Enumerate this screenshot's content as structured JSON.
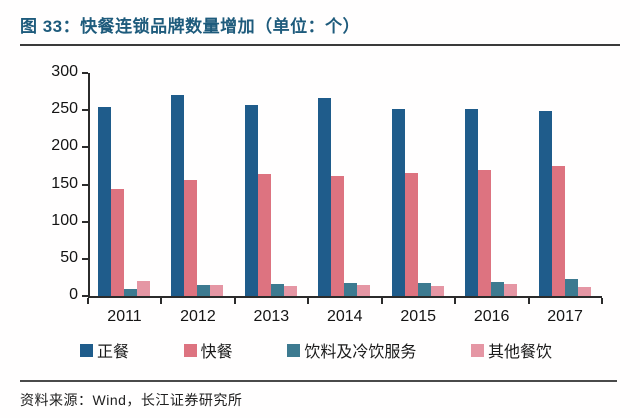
{
  "header": {
    "title": "图 33：快餐连锁品牌数量增加（单位：个）"
  },
  "footer": {
    "source": "资料来源：Wind，长江证券研究所"
  },
  "colors": {
    "title_text": "#1e5b7c",
    "axis": "#2b2b2b",
    "series_zhengcan": "#1f5c8b",
    "series_kuaican": "#dd7380",
    "series_yinliao": "#3d7a90",
    "series_qita": "#e596a4"
  },
  "chart_data": {
    "type": "bar",
    "title": "快餐连锁品牌数量增加（单位：个）",
    "categories": [
      "2011",
      "2012",
      "2013",
      "2014",
      "2015",
      "2016",
      "2017"
    ],
    "series": [
      {
        "name": "正餐",
        "color": "#1f5c8b",
        "values": [
          254,
          270,
          257,
          267,
          252,
          251,
          249
        ]
      },
      {
        "name": "快餐",
        "color": "#dd7380",
        "values": [
          144,
          156,
          164,
          161,
          166,
          169,
          175
        ]
      },
      {
        "name": "饮料及冷饮服务",
        "color": "#3d7a90",
        "values": [
          10,
          15,
          16,
          18,
          17,
          19,
          23
        ]
      },
      {
        "name": "其他餐饮",
        "color": "#e596a4",
        "values": [
          20,
          15,
          14,
          15,
          14,
          16,
          12
        ]
      }
    ],
    "xlabel": "",
    "ylabel": "",
    "ylim": [
      0,
      300
    ],
    "y_ticks": [
      0,
      50,
      100,
      150,
      200,
      250,
      300
    ],
    "grid": false,
    "legend_position": "bottom"
  }
}
